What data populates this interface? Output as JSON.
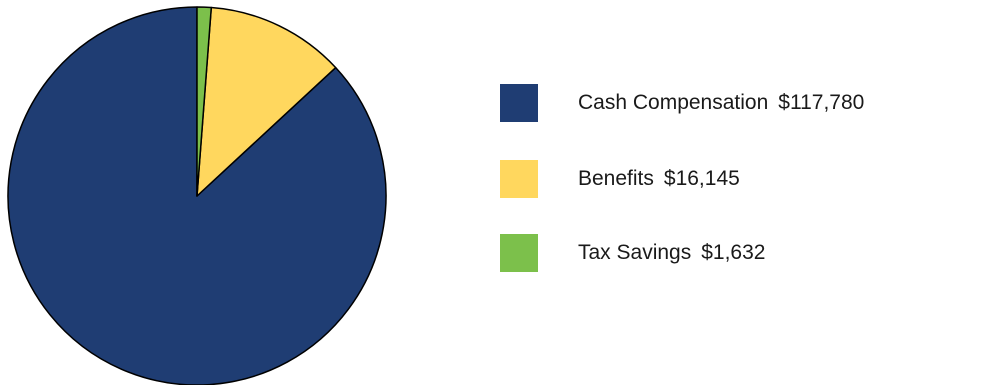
{
  "chart_data": {
    "type": "pie",
    "categories": [
      "Cash Compensation",
      "Benefits",
      "Tax Savings"
    ],
    "values": [
      117780,
      16145,
      1632
    ],
    "value_labels": [
      "$117,780",
      "$16,145",
      "$1,632"
    ],
    "colors": [
      "#1f3d73",
      "#ffd75e",
      "#7cc04b"
    ],
    "title": "",
    "legend_position": "right",
    "start_angle": "top",
    "direction": "counterclockwise"
  }
}
